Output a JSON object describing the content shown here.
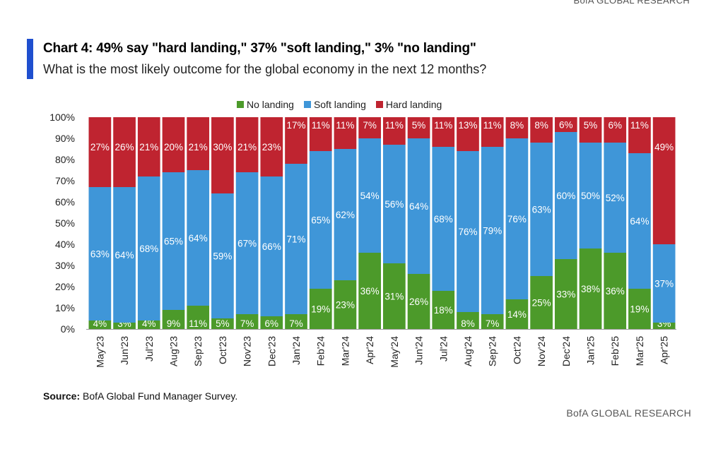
{
  "header": {
    "brand": "BofA GLOBAL RESEARCH",
    "title": "Chart 4: 49% say \"hard landing,\" 37% \"soft landing,\" 3% \"no landing\"",
    "subtitle": "What is the most likely outcome for the global economy in the next 12 months?"
  },
  "footer": {
    "source_label": "Source:",
    "source_text": "BofA Global Fund Manager Survey.",
    "brand": "BofA GLOBAL RESEARCH"
  },
  "colors": {
    "accent": "#1f4fcf",
    "no_landing": "#4c9a2a",
    "soft_landing": "#3f96d8",
    "hard_landing": "#bf2430"
  },
  "chart_data": {
    "type": "bar",
    "stacked": true,
    "categories": [
      "May'23",
      "Jun'23",
      "Jul'23",
      "Aug'23",
      "Sep'23",
      "Oct'23",
      "Nov'23",
      "Dec'23",
      "Jan'24",
      "Feb'24",
      "Mar'24",
      "Apr'24",
      "May'24",
      "Jun'24",
      "Jul'24",
      "Aug'24",
      "Sep'24",
      "Oct'24",
      "Nov'24",
      "Dec'24",
      "Jan'25",
      "Feb'25",
      "Mar'25",
      "Apr'25"
    ],
    "series": [
      {
        "name": "No landing",
        "color": "#4c9a2a",
        "values": [
          4,
          3,
          4,
          9,
          11,
          5,
          7,
          6,
          7,
          19,
          23,
          36,
          31,
          26,
          18,
          8,
          7,
          14,
          25,
          33,
          38,
          36,
          19,
          3
        ]
      },
      {
        "name": "Soft landing",
        "color": "#3f96d8",
        "values": [
          63,
          64,
          68,
          65,
          64,
          59,
          67,
          66,
          71,
          65,
          62,
          54,
          56,
          64,
          68,
          76,
          79,
          76,
          63,
          60,
          50,
          52,
          64,
          37
        ]
      },
      {
        "name": "Hard landing",
        "color": "#bf2430",
        "values": [
          27,
          26,
          21,
          20,
          21,
          30,
          21,
          23,
          17,
          11,
          11,
          7,
          11,
          5,
          11,
          13,
          11,
          8,
          8,
          6,
          5,
          6,
          11,
          49
        ]
      }
    ],
    "yticks": [
      "0%",
      "10%",
      "20%",
      "30%",
      "40%",
      "50%",
      "60%",
      "70%",
      "80%",
      "90%",
      "100%"
    ],
    "ylim": [
      0,
      100
    ],
    "legend_position": "top-center",
    "grid": false
  }
}
